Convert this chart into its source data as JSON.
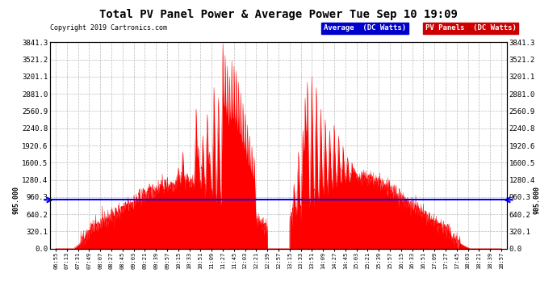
{
  "title": "Total PV Panel Power & Average Power Tue Sep 10 19:09",
  "copyright": "Copyright 2019 Cartronics.com",
  "legend_entries": [
    {
      "label": "Average  (DC Watts)",
      "bg_color": "#0000CC",
      "text_color": "#FFFFFF"
    },
    {
      "label": "PV Panels  (DC Watts)",
      "bg_color": "#CC0000",
      "text_color": "#FFFFFF"
    }
  ],
  "ymin": 0.0,
  "ymax": 3841.3,
  "yticks": [
    0.0,
    320.1,
    640.2,
    960.3,
    1280.4,
    1600.5,
    1920.6,
    2240.8,
    2560.9,
    2881.0,
    3201.1,
    3521.2,
    3841.3
  ],
  "average_line_y": 905.0,
  "average_line_label": "905.000",
  "background_color": "#FFFFFF",
  "plot_bg_color": "#FFFFFF",
  "grid_color": "#AAAAAA",
  "fill_color": "#FF0000",
  "line_color": "#FF0000",
  "avg_line_color": "#0000FF",
  "x_labels": [
    "06:55",
    "07:13",
    "07:31",
    "07:49",
    "08:07",
    "08:27",
    "08:45",
    "09:03",
    "09:21",
    "09:39",
    "09:57",
    "10:15",
    "10:33",
    "10:51",
    "11:09",
    "11:27",
    "11:45",
    "12:03",
    "12:21",
    "12:39",
    "12:57",
    "13:15",
    "13:33",
    "13:51",
    "14:09",
    "14:27",
    "14:45",
    "15:03",
    "15:21",
    "15:39",
    "15:57",
    "16:15",
    "16:33",
    "16:51",
    "17:09",
    "17:27",
    "17:45",
    "18:03",
    "18:21",
    "18:39",
    "18:57"
  ],
  "num_points": 2000,
  "seed": 42
}
